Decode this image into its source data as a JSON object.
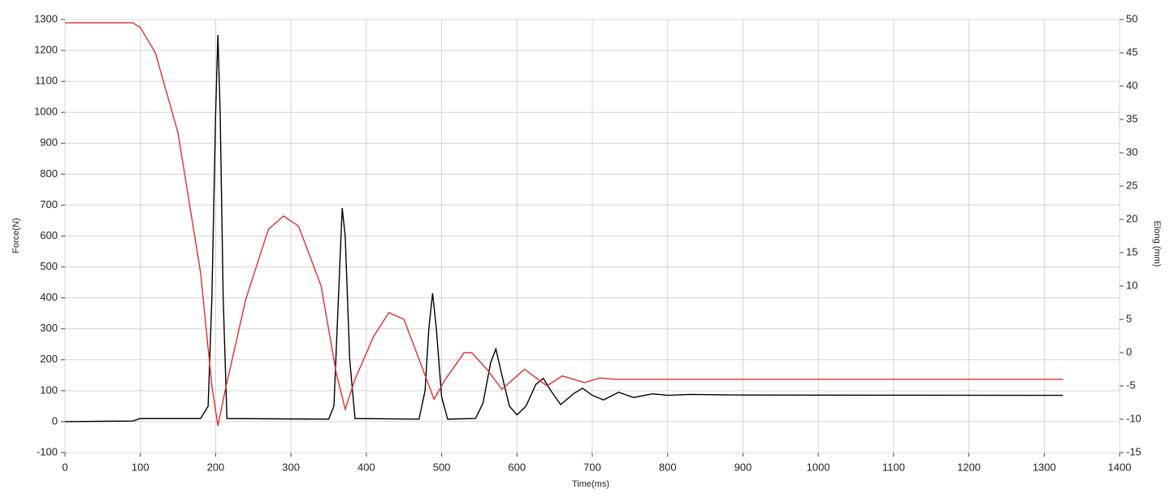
{
  "chart_data": {
    "type": "line",
    "xlabel": "Time(ms)",
    "ylabel": "Force(N)",
    "y2label": "Elong (mm)",
    "xlim": [
      0,
      1400
    ],
    "xticks": [
      0,
      100,
      200,
      300,
      400,
      500,
      600,
      700,
      800,
      900,
      1000,
      1100,
      1200,
      1300,
      1400
    ],
    "ylim": [
      -100,
      1300
    ],
    "yticks": [
      -100,
      0,
      100,
      200,
      300,
      400,
      500,
      600,
      700,
      800,
      900,
      1000,
      1100,
      1200,
      1300
    ],
    "y2lim": [
      -15,
      50
    ],
    "y2ticks": [
      -15,
      -10,
      -5,
      0,
      5,
      10,
      15,
      20,
      25,
      30,
      35,
      40,
      45,
      50
    ],
    "grid": true,
    "series": [
      {
        "color": "#000000",
        "axis": "y",
        "x": [
          0,
          90,
          100,
          180,
          190,
          195,
          200,
          203,
          206,
          210,
          215,
          350,
          357,
          363,
          368,
          372,
          378,
          385,
          470,
          478,
          483,
          488,
          493,
          500,
          508,
          545,
          555,
          565,
          572,
          580,
          590,
          600,
          612,
          625,
          635,
          645,
          658,
          675,
          687,
          700,
          715,
          735,
          755,
          780,
          800,
          830,
          900,
          1325
        ],
        "values": [
          0,
          2,
          10,
          10,
          50,
          400,
          1000,
          1250,
          1000,
          400,
          10,
          8,
          50,
          400,
          690,
          600,
          200,
          10,
          8,
          100,
          300,
          415,
          300,
          80,
          8,
          10,
          60,
          190,
          235,
          150,
          50,
          22,
          50,
          120,
          140,
          100,
          55,
          90,
          108,
          85,
          70,
          95,
          78,
          90,
          85,
          88,
          86,
          85
        ]
      },
      {
        "color": "#e03030",
        "axis": "y2",
        "x": [
          0,
          90,
          100,
          120,
          150,
          180,
          195,
          203,
          212,
          240,
          270,
          290,
          310,
          340,
          360,
          372,
          385,
          410,
          430,
          450,
          480,
          490,
          505,
          530,
          540,
          560,
          580,
          610,
          640,
          660,
          690,
          710,
          730,
          800,
          1325
        ],
        "values": [
          49.5,
          49.5,
          48.8,
          45,
          33,
          12,
          -5,
          -11,
          -6,
          8,
          18.5,
          20.5,
          19,
          10,
          -3,
          -8.5,
          -4,
          2.5,
          6,
          5,
          -4,
          -7,
          -4,
          0,
          0,
          -2.5,
          -5.5,
          -2.5,
          -5,
          -3.5,
          -4.5,
          -3.8,
          -4,
          -4,
          -4
        ]
      }
    ]
  }
}
